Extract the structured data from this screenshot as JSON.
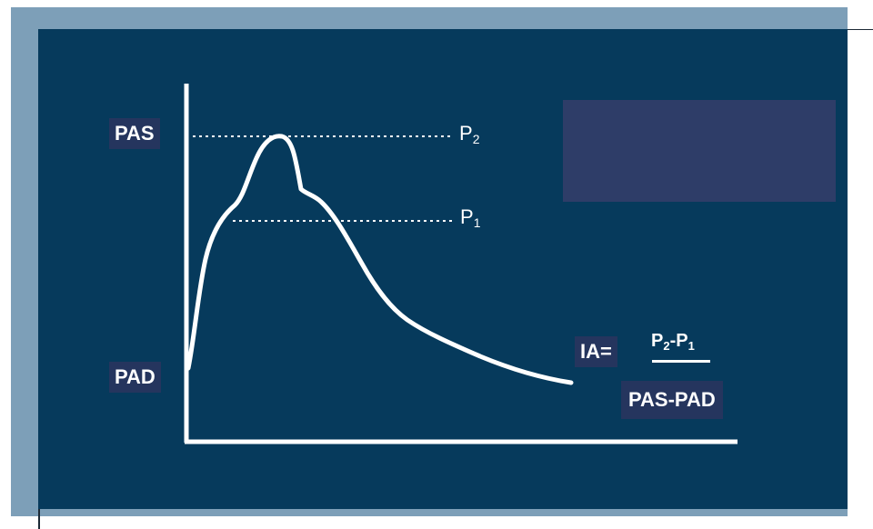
{
  "labels": {
    "pas": "PAS",
    "pad": "PAD",
    "p2_letter": "P",
    "p2_sub": "2",
    "p1_letter": "P",
    "p1_sub": "1"
  },
  "formula": {
    "lhs": "IA=",
    "num_p2": "P",
    "num_p2_sub": "2",
    "num_sep": "-",
    "num_p1": "P",
    "num_p1_sub": "1",
    "denominator": "PAS-PAD"
  },
  "colors": {
    "frame": "#7d9fb8",
    "panel": "#063a5c",
    "label_box": "#25355e",
    "placeholder": "#2e3d68",
    "curve": "#ffffff"
  }
}
